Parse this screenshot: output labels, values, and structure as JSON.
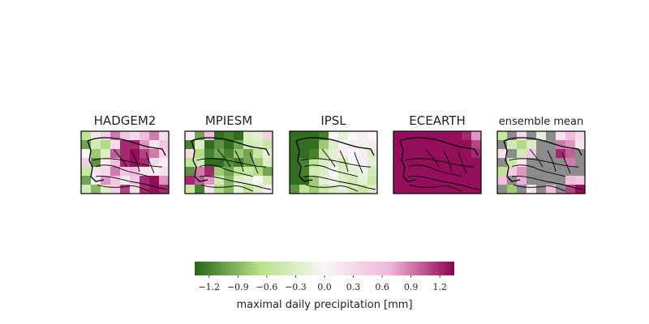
{
  "chart_data": {
    "type": "heatmap",
    "panels": [
      {
        "title": "HADGEM2",
        "grid": [
          [
            -0.6,
            0.2,
            0.4,
            0.9,
            0.5,
            0.3,
            0.6,
            0.9,
            0.3
          ],
          [
            -1.0,
            -0.4,
            -0.7,
            0.3,
            1.2,
            1.2,
            0.8,
            0.2,
            0.5
          ],
          [
            0.0,
            -0.8,
            -0.3,
            1.0,
            1.2,
            1.3,
            1.1,
            0.9,
            0.4
          ],
          [
            0.4,
            -1.1,
            0.1,
            0.6,
            1.2,
            1.3,
            1.2,
            0.3,
            0.1
          ],
          [
            -0.5,
            0.2,
            0.3,
            0.9,
            0.5,
            0.6,
            0.2,
            0.1,
            0.2
          ],
          [
            -1.0,
            0.1,
            0.8,
            0.5,
            0.1,
            0.5,
            1.2,
            1.3,
            0.8
          ],
          [
            -0.4,
            -0.9,
            -0.3,
            0.4,
            1.1,
            0.3,
            1.2,
            1.3,
            1.2
          ]
        ]
      },
      {
        "title": "MPIESM",
        "grid": [
          [
            0.1,
            -1.0,
            0.6,
            -1.3,
            -1.2,
            -1.3,
            -0.3,
            -0.2,
            0.4
          ],
          [
            -1.2,
            -0.3,
            -1.3,
            -1.1,
            -1.3,
            -1.0,
            -0.4,
            -0.3,
            -0.5
          ],
          [
            0.3,
            -0.7,
            -1.2,
            -1.0,
            -1.2,
            -0.8,
            -1.0,
            -0.5,
            -0.2
          ],
          [
            -0.6,
            -0.4,
            -1.3,
            -1.3,
            -1.1,
            -1.2,
            -1.0,
            -0.8,
            -0.3
          ],
          [
            -1.1,
            0.9,
            1.2,
            -0.8,
            -1.0,
            -0.6,
            -0.5,
            -0.7,
            -1.0
          ],
          [
            1.2,
            1.0,
            0.8,
            -0.4,
            -0.9,
            -0.3,
            -0.2,
            0.0,
            -0.4
          ],
          [
            -0.5,
            -1.2,
            0.2,
            -0.7,
            -0.9,
            -0.2,
            -0.6,
            -0.3,
            0.1
          ]
        ]
      },
      {
        "title": "IPSL",
        "grid": [
          [
            -1.3,
            -1.3,
            -1.3,
            -1.2,
            0.0,
            -0.2,
            0.0,
            0.1,
            0.0
          ],
          [
            -1.3,
            -1.3,
            -1.3,
            -0.8,
            -0.3,
            0.0,
            0.1,
            -0.1,
            0.1
          ],
          [
            -1.3,
            -1.3,
            -1.2,
            -0.5,
            -0.2,
            0.1,
            0.0,
            0.1,
            -0.3
          ],
          [
            -1.3,
            -1.2,
            -0.6,
            -0.3,
            -0.2,
            -0.4,
            0.0,
            0.1,
            -0.2
          ],
          [
            -1.3,
            -1.2,
            -0.4,
            -0.3,
            0.0,
            -0.3,
            -0.2,
            -0.1,
            -0.4
          ],
          [
            -1.3,
            -1.3,
            -0.8,
            -0.2,
            -0.1,
            -0.3,
            -0.4,
            -0.2,
            -0.5
          ],
          [
            -1.1,
            -0.6,
            -0.8,
            -0.5,
            -0.3,
            -0.2,
            -0.4,
            -0.5,
            -0.3
          ]
        ]
      },
      {
        "title": "ECEARTH",
        "grid": [
          [
            1.3,
            1.3,
            1.3,
            1.3,
            1.3,
            1.3,
            1.3,
            1.2,
            0.8
          ],
          [
            1.3,
            1.3,
            1.3,
            1.3,
            1.3,
            1.3,
            1.3,
            1.3,
            1.1
          ],
          [
            1.3,
            1.3,
            1.3,
            1.3,
            1.3,
            1.3,
            1.3,
            1.3,
            1.2
          ],
          [
            1.3,
            1.3,
            1.3,
            1.3,
            1.3,
            1.3,
            1.3,
            1.3,
            1.3
          ],
          [
            1.3,
            1.3,
            1.3,
            1.3,
            1.3,
            1.3,
            1.3,
            1.3,
            1.3
          ],
          [
            1.3,
            1.3,
            1.3,
            1.3,
            1.3,
            1.3,
            1.3,
            1.3,
            1.3
          ],
          [
            1.3,
            1.3,
            1.3,
            1.3,
            1.3,
            1.3,
            1.3,
            1.3,
            1.3
          ]
        ]
      },
      {
        "title": "ensemble mean",
        "grid": [
          [
            -0.5,
            null,
            0.3,
            null,
            -0.2,
            null,
            0.2,
            0.6,
            0.3
          ],
          [
            null,
            -0.4,
            -0.7,
            -0.3,
            null,
            null,
            0.9,
            0.8,
            0.2
          ],
          [
            0.2,
            null,
            -0.4,
            0.5,
            null,
            null,
            1.2,
            1.0,
            null
          ],
          [
            null,
            -0.5,
            0.2,
            null,
            null,
            null,
            null,
            0.9,
            null
          ],
          [
            -0.6,
            0.5,
            0.8,
            null,
            null,
            null,
            null,
            null,
            null
          ],
          [
            0.6,
            null,
            0.7,
            null,
            null,
            null,
            null,
            0.6,
            0.5
          ],
          [
            null,
            -0.8,
            null,
            0.2,
            null,
            0.6,
            null,
            1.1,
            1.3
          ]
        ]
      }
    ],
    "colorbar": {
      "vmin": -1.35,
      "vmax": 1.35,
      "ticks": [
        "−1.2",
        "−0.9",
        "−0.6",
        "−0.3",
        "0.0",
        "0.3",
        "0.6",
        "0.9",
        "1.2"
      ],
      "tick_values": [
        -1.2,
        -0.9,
        -0.6,
        -0.3,
        0.0,
        0.3,
        0.6,
        0.9,
        1.2
      ],
      "label": "maximal daily precipitation [mm]",
      "colormap": "PiYG reversed (green negative, pink/magenta positive)"
    },
    "colors": {
      "negative_max": "#276419",
      "negative_mid": "#b8e186",
      "zero": "#f7f7f7",
      "positive_mid": "#f1b6da",
      "positive_max": "#8e0152",
      "missing": "#8c8c8c",
      "border": "#000000"
    }
  }
}
